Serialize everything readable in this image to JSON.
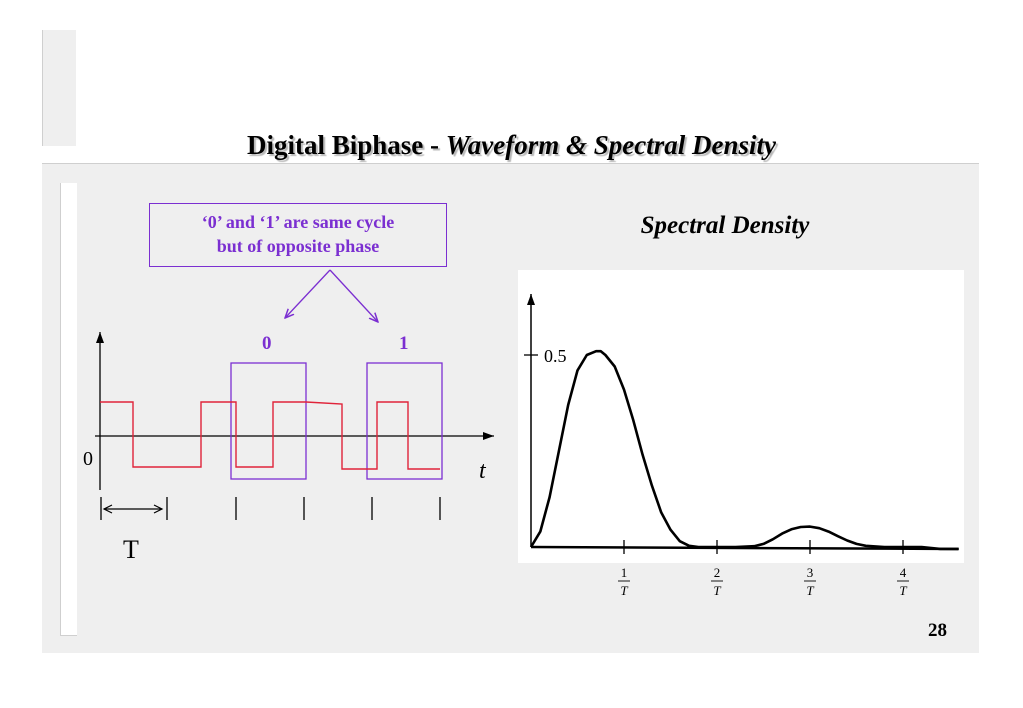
{
  "slide": {
    "title_plain": "Digital Biphase - ",
    "title_italic": "Waveform & Spectral Density",
    "page_number": "28"
  },
  "callout": {
    "line1": "‘0’ and ‘1’ are same cycle",
    "line2": "but of opposite phase"
  },
  "waveform": {
    "bit_label_0": "0",
    "bit_label_1": "1",
    "origin_label": "0",
    "time_axis_label": "t",
    "period_label": "T",
    "colors": {
      "waveform": "#e0243a",
      "highlight": "#7b2fd1",
      "axis": "#000000"
    }
  },
  "spectrum": {
    "title": "Spectral Density",
    "y_tick": "0.5",
    "x_ticks": [
      {
        "num": "1",
        "den": "T"
      },
      {
        "num": "2",
        "den": "T"
      },
      {
        "num": "3",
        "den": "T"
      },
      {
        "num": "4",
        "den": "T"
      }
    ]
  },
  "chart_data": {
    "type": "line",
    "title": "Spectral Density",
    "xlabel": "",
    "ylabel": "",
    "x_ticks": [
      "1/T",
      "2/T",
      "3/T",
      "4/T"
    ],
    "y_ticks": [
      "0.5"
    ],
    "xlim": [
      0,
      4.6
    ],
    "ylim": [
      0,
      0.55
    ],
    "series": [
      {
        "x": [
          0,
          0.1,
          0.2,
          0.3,
          0.4,
          0.5,
          0.6,
          0.7,
          0.75,
          0.8,
          0.9,
          1.0,
          1.1,
          1.2,
          1.3,
          1.4,
          1.5,
          1.6,
          1.7,
          1.8,
          1.9,
          2.0,
          2.2,
          2.4,
          2.5,
          2.6,
          2.7,
          2.8,
          2.9,
          3.0,
          3.1,
          3.2,
          3.3,
          3.4,
          3.5,
          3.6,
          3.8,
          4.0,
          4.2,
          4.4,
          4.6
        ],
        "y": [
          0,
          0.04,
          0.13,
          0.25,
          0.37,
          0.46,
          0.5,
          0.51,
          0.51,
          0.5,
          0.47,
          0.41,
          0.33,
          0.24,
          0.16,
          0.09,
          0.045,
          0.015,
          0.003,
          0,
          0,
          0,
          0,
          0.002,
          0.008,
          0.02,
          0.035,
          0.046,
          0.052,
          0.053,
          0.049,
          0.04,
          0.028,
          0.017,
          0.008,
          0.003,
          0,
          0,
          0,
          -0.005,
          -0.005
        ]
      }
    ]
  }
}
